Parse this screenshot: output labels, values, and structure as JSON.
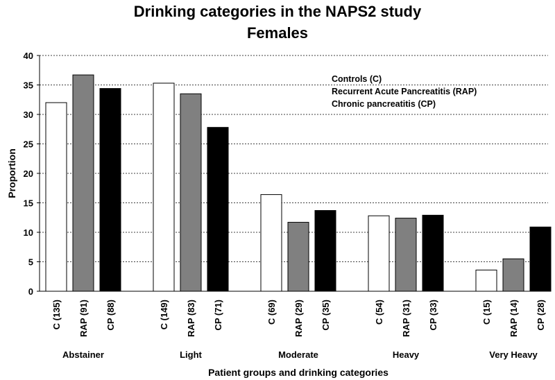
{
  "chart_data": {
    "type": "bar",
    "title": [
      "Drinking categories in the NAPS2 study",
      "Females"
    ],
    "xlabel": "Patient groups and drinking categories",
    "ylabel": "Proportion",
    "ylim": [
      0,
      40
    ],
    "yticks": [
      0,
      5,
      10,
      15,
      20,
      25,
      30,
      35,
      40
    ],
    "grid": "horizontal dashed",
    "legend": {
      "placement": "top-right",
      "entries": [
        "Controls (C)",
        "Recurrent Acute Pancreatitis (RAP)",
        "Chronic pancreatitis (CP)"
      ]
    },
    "series_colors": {
      "C": "#ffffff",
      "RAP": "#808080",
      "CP": "#000000"
    },
    "groups": [
      {
        "name": "Abstainer",
        "bars": [
          {
            "series": "C",
            "label": "C (135)",
            "value": 32.0
          },
          {
            "series": "RAP",
            "label": "RAP (91)",
            "value": 36.7
          },
          {
            "series": "CP",
            "label": "CP (88)",
            "value": 34.4
          }
        ]
      },
      {
        "name": "Light",
        "bars": [
          {
            "series": "C",
            "label": "C (149)",
            "value": 35.3
          },
          {
            "series": "RAP",
            "label": "RAP (83)",
            "value": 33.5
          },
          {
            "series": "CP",
            "label": "CP (71)",
            "value": 27.8
          }
        ]
      },
      {
        "name": "Moderate",
        "bars": [
          {
            "series": "C",
            "label": "C (69)",
            "value": 16.4
          },
          {
            "series": "RAP",
            "label": "RAP (29)",
            "value": 11.7
          },
          {
            "series": "CP",
            "label": "CP (35)",
            "value": 13.7
          }
        ]
      },
      {
        "name": "Heavy",
        "bars": [
          {
            "series": "C",
            "label": "C (54)",
            "value": 12.8
          },
          {
            "series": "RAP",
            "label": "RAP (31)",
            "value": 12.4
          },
          {
            "series": "CP",
            "label": "CP (33)",
            "value": 12.9
          }
        ]
      },
      {
        "name": "Very Heavy",
        "bars": [
          {
            "series": "C",
            "label": "C (15)",
            "value": 3.6
          },
          {
            "series": "RAP",
            "label": "RAP (14)",
            "value": 5.5
          },
          {
            "series": "CP",
            "label": "CP (28)",
            "value": 10.9
          }
        ]
      }
    ]
  }
}
